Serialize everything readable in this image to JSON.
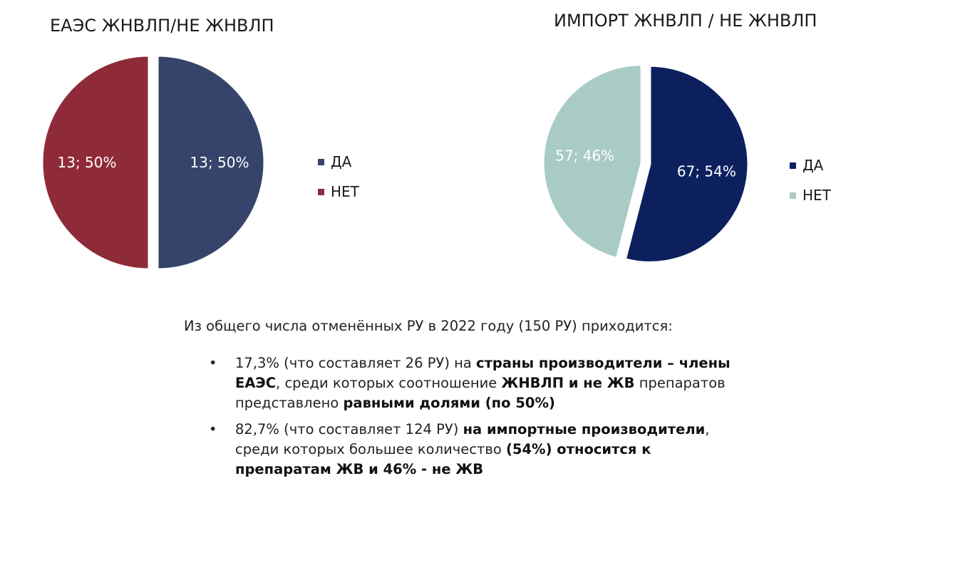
{
  "chart_data": [
    {
      "type": "pie",
      "title": "ЕАЭС ЖНВЛП/НЕ ЖНВЛП",
      "slices": [
        {
          "name": "ДА",
          "value": 13,
          "percent": 50,
          "label": "13; 50%",
          "color": "#36446b"
        },
        {
          "name": "НЕТ",
          "value": 13,
          "percent": 50,
          "label": "13; 50%",
          "color": "#8f2b38"
        }
      ],
      "legend": [
        "ДА",
        "НЕТ"
      ],
      "legend_position": "right"
    },
    {
      "type": "pie",
      "title": "ИМПОРТ ЖНВЛП / НЕ ЖНВЛП",
      "slices": [
        {
          "name": "ДА",
          "value": 67,
          "percent": 54,
          "label": "67; 54%",
          "color": "#0c205e"
        },
        {
          "name": "НЕТ",
          "value": 57,
          "percent": 46,
          "label": "57; 46%",
          "color": "#a9cbc6"
        }
      ],
      "legend": [
        "ДА",
        "НЕТ"
      ],
      "legend_position": "right"
    }
  ],
  "summary": {
    "intro": "Из общего числа отменённых РУ в 2022 году (150 РУ) приходится:",
    "bullet_char": "•",
    "bullets": [
      [
        {
          "t": "17,3% (что составляет 26 РУ) на ",
          "b": false
        },
        {
          "t": "страны производители – члены ЕАЭС",
          "b": true
        },
        {
          "t": ", среди которых соотношение ",
          "b": false
        },
        {
          "t": "ЖНВЛП и не ЖВ",
          "b": true
        },
        {
          "t": " препаратов представлено ",
          "b": false
        },
        {
          "t": "равными долями (по 50%)",
          "b": true
        }
      ],
      [
        {
          "t": "82,7% (что составляет 124 РУ) ",
          "b": false
        },
        {
          "t": "на импортные производители",
          "b": true
        },
        {
          "t": ", среди которых большее количество ",
          "b": false
        },
        {
          "t": "(54%) относится к препаратам ЖВ и 46% - не ЖВ",
          "b": true
        }
      ]
    ]
  }
}
